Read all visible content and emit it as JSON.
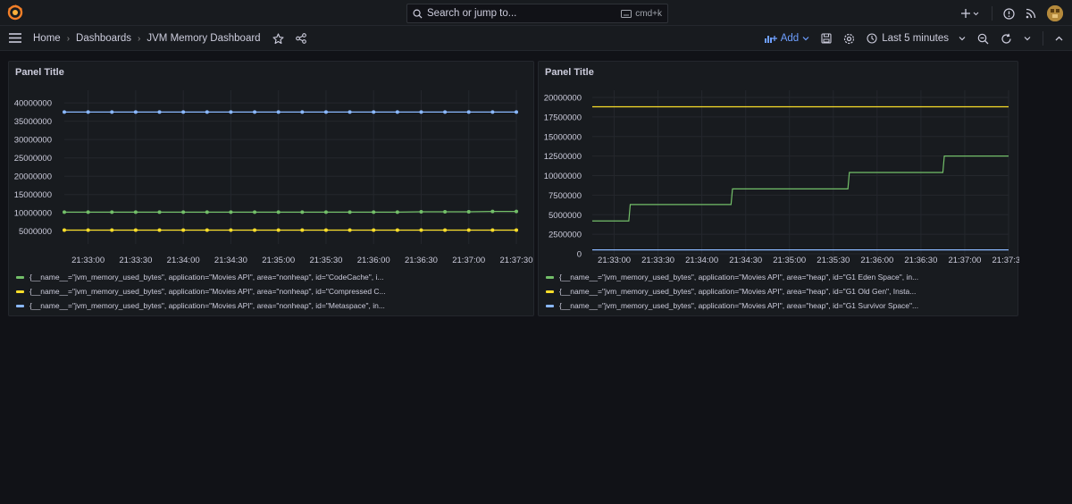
{
  "topbar": {
    "search_placeholder": "Search or jump to...",
    "search_shortcut": "cmd+k"
  },
  "breadcrumb": {
    "home": "Home",
    "dashboards": "Dashboards",
    "current": "JVM Memory Dashboard"
  },
  "toolbar": {
    "add_label": "Add",
    "time_range": "Last 5 minutes"
  },
  "colors": {
    "green": "#73bf69",
    "yellow": "#fade2a",
    "blue": "#8ab8ff"
  },
  "panels": [
    {
      "title": "Panel Title",
      "legend": [
        {
          "label": "{__name__=\"jvm_memory_used_bytes\", application=\"Movies API\", area=\"nonheap\", id=\"CodeCache\", i...",
          "color": "#73bf69"
        },
        {
          "label": "{__name__=\"jvm_memory_used_bytes\", application=\"Movies API\", area=\"nonheap\", id=\"Compressed C...",
          "color": "#fade2a"
        },
        {
          "label": "{__name__=\"jvm_memory_used_bytes\", application=\"Movies API\", area=\"nonheap\", id=\"Metaspace\", in...",
          "color": "#8ab8ff"
        }
      ]
    },
    {
      "title": "Panel Title",
      "legend": [
        {
          "label": "{__name__=\"jvm_memory_used_bytes\", application=\"Movies API\", area=\"heap\", id=\"G1 Eden Space\", in...",
          "color": "#73bf69"
        },
        {
          "label": "{__name__=\"jvm_memory_used_bytes\", application=\"Movies API\", area=\"heap\", id=\"G1 Old Gen\", Insta...",
          "color": "#fade2a"
        },
        {
          "label": "{__name__=\"jvm_memory_used_bytes\", application=\"Movies API\", area=\"heap\", id=\"G1 Survivor Space\"...",
          "color": "#8ab8ff"
        }
      ]
    }
  ],
  "chart_data": [
    {
      "type": "line",
      "title": "Panel Title",
      "x_ticks": [
        "21:33:00",
        "21:33:30",
        "21:34:00",
        "21:34:30",
        "21:35:00",
        "21:35:30",
        "21:36:00",
        "21:36:30",
        "21:37:00",
        "21:37:30"
      ],
      "y_ticks": [
        "40000000",
        "35000000",
        "30000000",
        "25000000",
        "20000000",
        "15000000",
        "10000000",
        "5000000"
      ],
      "ylim": [
        2500000,
        41500000
      ],
      "x": [
        "21:32:45",
        "21:33:00",
        "21:33:15",
        "21:33:30",
        "21:33:45",
        "21:34:00",
        "21:34:15",
        "21:34:30",
        "21:34:45",
        "21:35:00",
        "21:35:15",
        "21:35:30",
        "21:35:45",
        "21:36:00",
        "21:36:15",
        "21:36:30",
        "21:36:45",
        "21:37:00",
        "21:37:15",
        "21:37:30"
      ],
      "points": true,
      "series": [
        {
          "color": "#73bf69",
          "values": [
            10200000,
            10200000,
            10200000,
            10200000,
            10200000,
            10200000,
            10200000,
            10200000,
            10200000,
            10200000,
            10200000,
            10200000,
            10200000,
            10200000,
            10200000,
            10300000,
            10300000,
            10300000,
            10400000,
            10400000
          ]
        },
        {
          "color": "#fade2a",
          "values": [
            5300000,
            5300000,
            5300000,
            5300000,
            5300000,
            5300000,
            5300000,
            5300000,
            5300000,
            5300000,
            5300000,
            5300000,
            5300000,
            5300000,
            5300000,
            5300000,
            5300000,
            5300000,
            5300000,
            5300000
          ]
        },
        {
          "color": "#8ab8ff",
          "values": [
            37500000,
            37500000,
            37500000,
            37500000,
            37500000,
            37500000,
            37500000,
            37500000,
            37500000,
            37500000,
            37500000,
            37500000,
            37500000,
            37500000,
            37500000,
            37500000,
            37500000,
            37500000,
            37500000,
            37500000
          ]
        }
      ]
    },
    {
      "type": "line",
      "title": "Panel Title",
      "x_ticks": [
        "21:33:00",
        "21:33:30",
        "21:34:00",
        "21:34:30",
        "21:35:00",
        "21:35:30",
        "21:36:00",
        "21:36:30",
        "21:37:00",
        "21:37:30"
      ],
      "y_ticks": [
        "20000000",
        "17500000",
        "15000000",
        "12500000",
        "10000000",
        "7500000",
        "5000000",
        "2500000",
        "0"
      ],
      "ylim": [
        0,
        20000000
      ],
      "points": false,
      "series": [
        {
          "color": "#73bf69",
          "x": [
            "21:32:45",
            "21:33:10",
            "21:33:11",
            "21:34:20",
            "21:34:21",
            "21:35:40",
            "21:35:41",
            "21:36:45",
            "21:36:46",
            "21:37:30"
          ],
          "values": [
            4200000,
            4200000,
            6300000,
            6300000,
            8300000,
            8300000,
            10400000,
            10400000,
            12500000,
            12500000
          ]
        },
        {
          "color": "#fade2a",
          "x": [
            "21:32:45",
            "21:37:30"
          ],
          "values": [
            18800000,
            18800000
          ]
        },
        {
          "color": "#8ab8ff",
          "x": [
            "21:32:45",
            "21:37:30"
          ],
          "values": [
            500000,
            500000
          ]
        }
      ]
    }
  ]
}
